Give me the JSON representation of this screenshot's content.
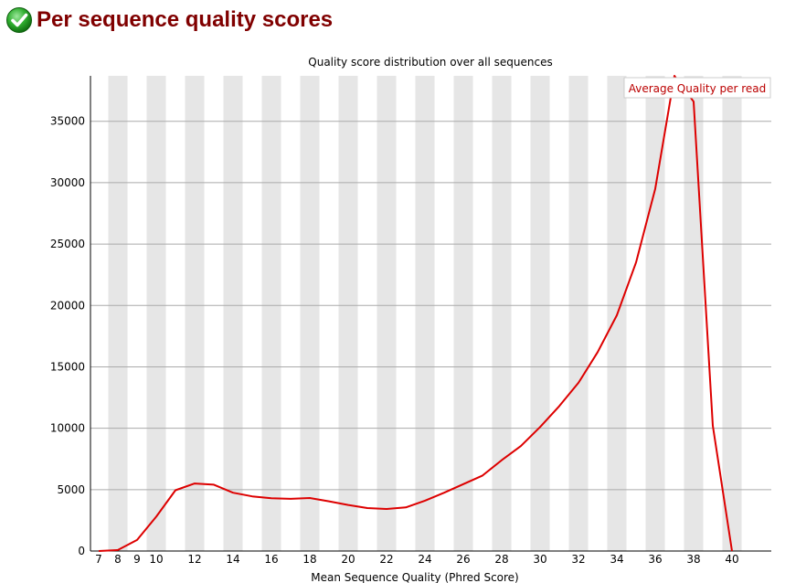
{
  "page": {
    "title": "Per sequence quality scores",
    "status_icon": "check-circle-icon",
    "status_color": "#22aa22"
  },
  "chart_data": {
    "type": "line",
    "title": "Quality score distribution over all sequences",
    "xlabel": "Mean Sequence Quality (Phred Score)",
    "ylabel": "",
    "xlim": [
      7,
      40
    ],
    "ylim": [
      0,
      38700
    ],
    "x_ticks": [
      7,
      8,
      9,
      10,
      12,
      14,
      16,
      18,
      20,
      22,
      24,
      26,
      28,
      30,
      32,
      34,
      36,
      38,
      40
    ],
    "y_ticks": [
      0,
      5000,
      10000,
      15000,
      20000,
      25000,
      30000,
      35000
    ],
    "grid": true,
    "legend_position": "top-right",
    "colors": {
      "line": "#dd0000",
      "band": "#e6e6e6",
      "grid": "#aaaaaa",
      "legend_text": "#bb0000"
    },
    "series": [
      {
        "name": "Average Quality per read",
        "x": [
          7,
          8,
          9,
          10,
          11,
          12,
          13,
          14,
          15,
          16,
          17,
          18,
          19,
          20,
          21,
          22,
          23,
          24,
          25,
          26,
          27,
          28,
          29,
          30,
          31,
          32,
          33,
          34,
          35,
          36,
          37,
          38,
          39,
          40
        ],
        "y": [
          0,
          80,
          900,
          2800,
          4950,
          5500,
          5400,
          4750,
          4450,
          4300,
          4250,
          4320,
          4050,
          3750,
          3500,
          3420,
          3550,
          4100,
          4750,
          5450,
          6150,
          7400,
          8550,
          10100,
          11800,
          13700,
          16200,
          19200,
          23500,
          29500,
          38700,
          36600,
          10200,
          0
        ]
      }
    ]
  }
}
